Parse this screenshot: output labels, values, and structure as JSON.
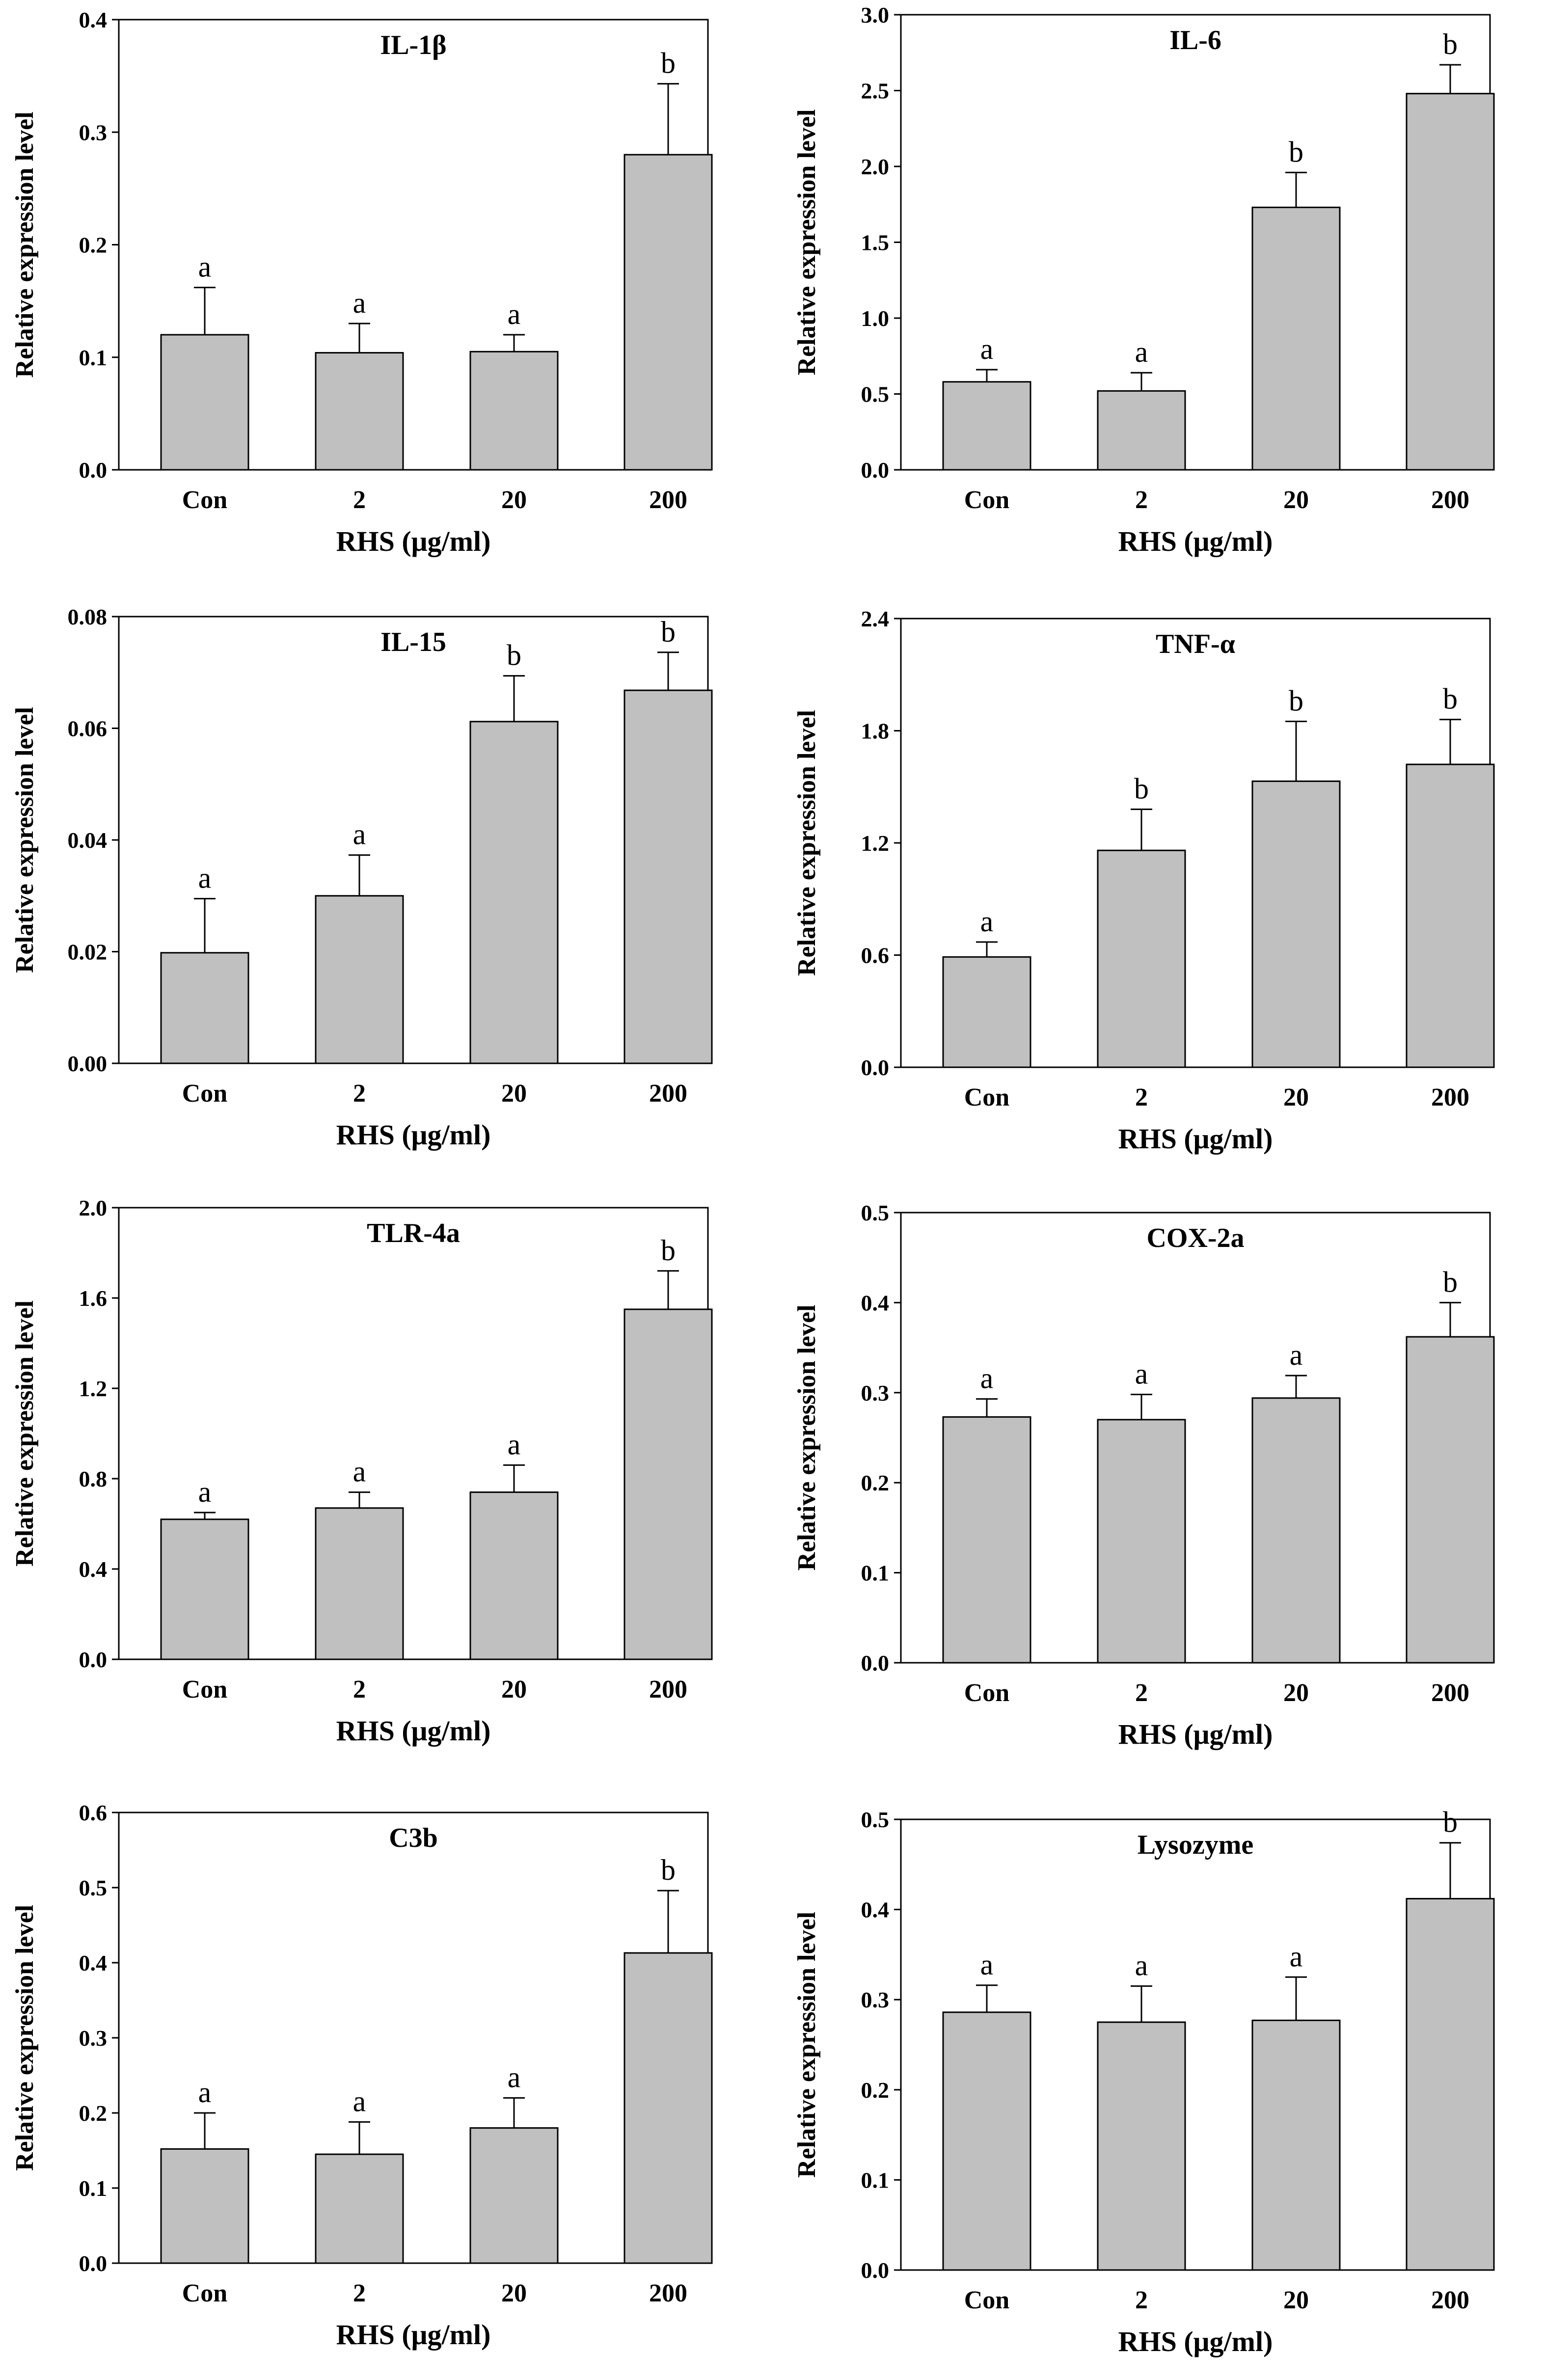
{
  "chart_data": [
    {
      "type": "bar",
      "title": "IL-1β",
      "categories": [
        "Con",
        "2",
        "20",
        "200"
      ],
      "values": [
        0.12,
        0.104,
        0.105,
        0.28
      ],
      "errors": [
        0.042,
        0.026,
        0.015,
        0.063
      ],
      "significance": [
        "a",
        "a",
        "a",
        "b"
      ],
      "ylim": [
        0,
        0.4
      ],
      "yticks": [
        "0.0",
        "0.1",
        "0.2",
        "0.3",
        "0.4"
      ],
      "xlabel": "RHS (μg/ml)",
      "ylabel": "Relative expression level"
    },
    {
      "type": "bar",
      "title": "IL-6",
      "categories": [
        "Con",
        "2",
        "20",
        "200"
      ],
      "values": [
        0.58,
        0.52,
        1.73,
        2.48
      ],
      "errors": [
        0.08,
        0.12,
        0.23,
        0.19
      ],
      "significance": [
        "a",
        "a",
        "b",
        "b"
      ],
      "ylim": [
        0,
        3
      ],
      "yticks": [
        "0.0",
        "0.5",
        "1.0",
        "1.5",
        "2.0",
        "2.5",
        "3.0"
      ],
      "xlabel": "RHS (μg/ml)",
      "ylabel": "Relative expression level"
    },
    {
      "type": "bar",
      "title": "IL-15",
      "categories": [
        "Con",
        "2",
        "20",
        "200"
      ],
      "values": [
        0.0198,
        0.03,
        0.0612,
        0.0668
      ],
      "errors": [
        0.0097,
        0.0073,
        0.0082,
        0.0068
      ],
      "significance": [
        "a",
        "a",
        "b",
        "b"
      ],
      "ylim": [
        0,
        0.08
      ],
      "yticks": [
        "0.00",
        "0.02",
        "0.04",
        "0.06",
        "0.08"
      ],
      "xlabel": "RHS (μg/ml)",
      "ylabel": "Relative expression level"
    },
    {
      "type": "bar",
      "title": "TNF-α",
      "categories": [
        "Con",
        "2",
        "20",
        "200"
      ],
      "values": [
        0.59,
        1.16,
        1.53,
        1.62
      ],
      "errors": [
        0.08,
        0.22,
        0.32,
        0.24
      ],
      "significance": [
        "a",
        "b",
        "b",
        "b"
      ],
      "ylim": [
        0,
        2.4
      ],
      "yticks": [
        "0.0",
        "0.6",
        "1.2",
        "1.8",
        "2.4"
      ],
      "xlabel": "RHS (μg/ml)",
      "ylabel": "Relative expression level"
    },
    {
      "type": "bar",
      "title": "TLR-4a",
      "categories": [
        "Con",
        "2",
        "20",
        "200"
      ],
      "values": [
        0.62,
        0.67,
        0.74,
        1.55
      ],
      "errors": [
        0.03,
        0.07,
        0.12,
        0.17
      ],
      "significance": [
        "a",
        "a",
        "a",
        "b"
      ],
      "ylim": [
        0,
        2
      ],
      "yticks": [
        "0.0",
        "0.4",
        "0.8",
        "1.2",
        "1.6",
        "2.0"
      ],
      "xlabel": "RHS (μg/ml)",
      "ylabel": "Relative expression level"
    },
    {
      "type": "bar",
      "title": "COX-2a",
      "categories": [
        "Con",
        "2",
        "20",
        "200"
      ],
      "values": [
        0.273,
        0.27,
        0.294,
        0.362
      ],
      "errors": [
        0.02,
        0.028,
        0.025,
        0.038
      ],
      "significance": [
        "a",
        "a",
        "a",
        "b"
      ],
      "ylim": [
        0,
        0.5
      ],
      "yticks": [
        "0.0",
        "0.1",
        "0.2",
        "0.3",
        "0.4",
        "0.5"
      ],
      "xlabel": "RHS (μg/ml)",
      "ylabel": "Relative expression level"
    },
    {
      "type": "bar",
      "title": "C3b",
      "categories": [
        "Con",
        "2",
        "20",
        "200"
      ],
      "values": [
        0.152,
        0.145,
        0.18,
        0.413
      ],
      "errors": [
        0.048,
        0.043,
        0.04,
        0.083
      ],
      "significance": [
        "a",
        "a",
        "a",
        "b"
      ],
      "ylim": [
        0,
        0.6
      ],
      "yticks": [
        "0.0",
        "0.1",
        "0.2",
        "0.3",
        "0.4",
        "0.5",
        "0.6"
      ],
      "xlabel": "RHS (μg/ml)",
      "ylabel": "Relative expression level"
    },
    {
      "type": "bar",
      "title": "Lysozyme",
      "categories": [
        "Con",
        "2",
        "20",
        "200"
      ],
      "values": [
        0.286,
        0.275,
        0.277,
        0.412
      ],
      "errors": [
        0.03,
        0.04,
        0.048,
        0.062
      ],
      "significance": [
        "a",
        "a",
        "a",
        "b"
      ],
      "ylim": [
        0,
        0.5
      ],
      "yticks": [
        "0.0",
        "0.1",
        "0.2",
        "0.3",
        "0.4",
        "0.5"
      ],
      "xlabel": "RHS (μg/ml)",
      "ylabel": "Relative expression level"
    }
  ]
}
